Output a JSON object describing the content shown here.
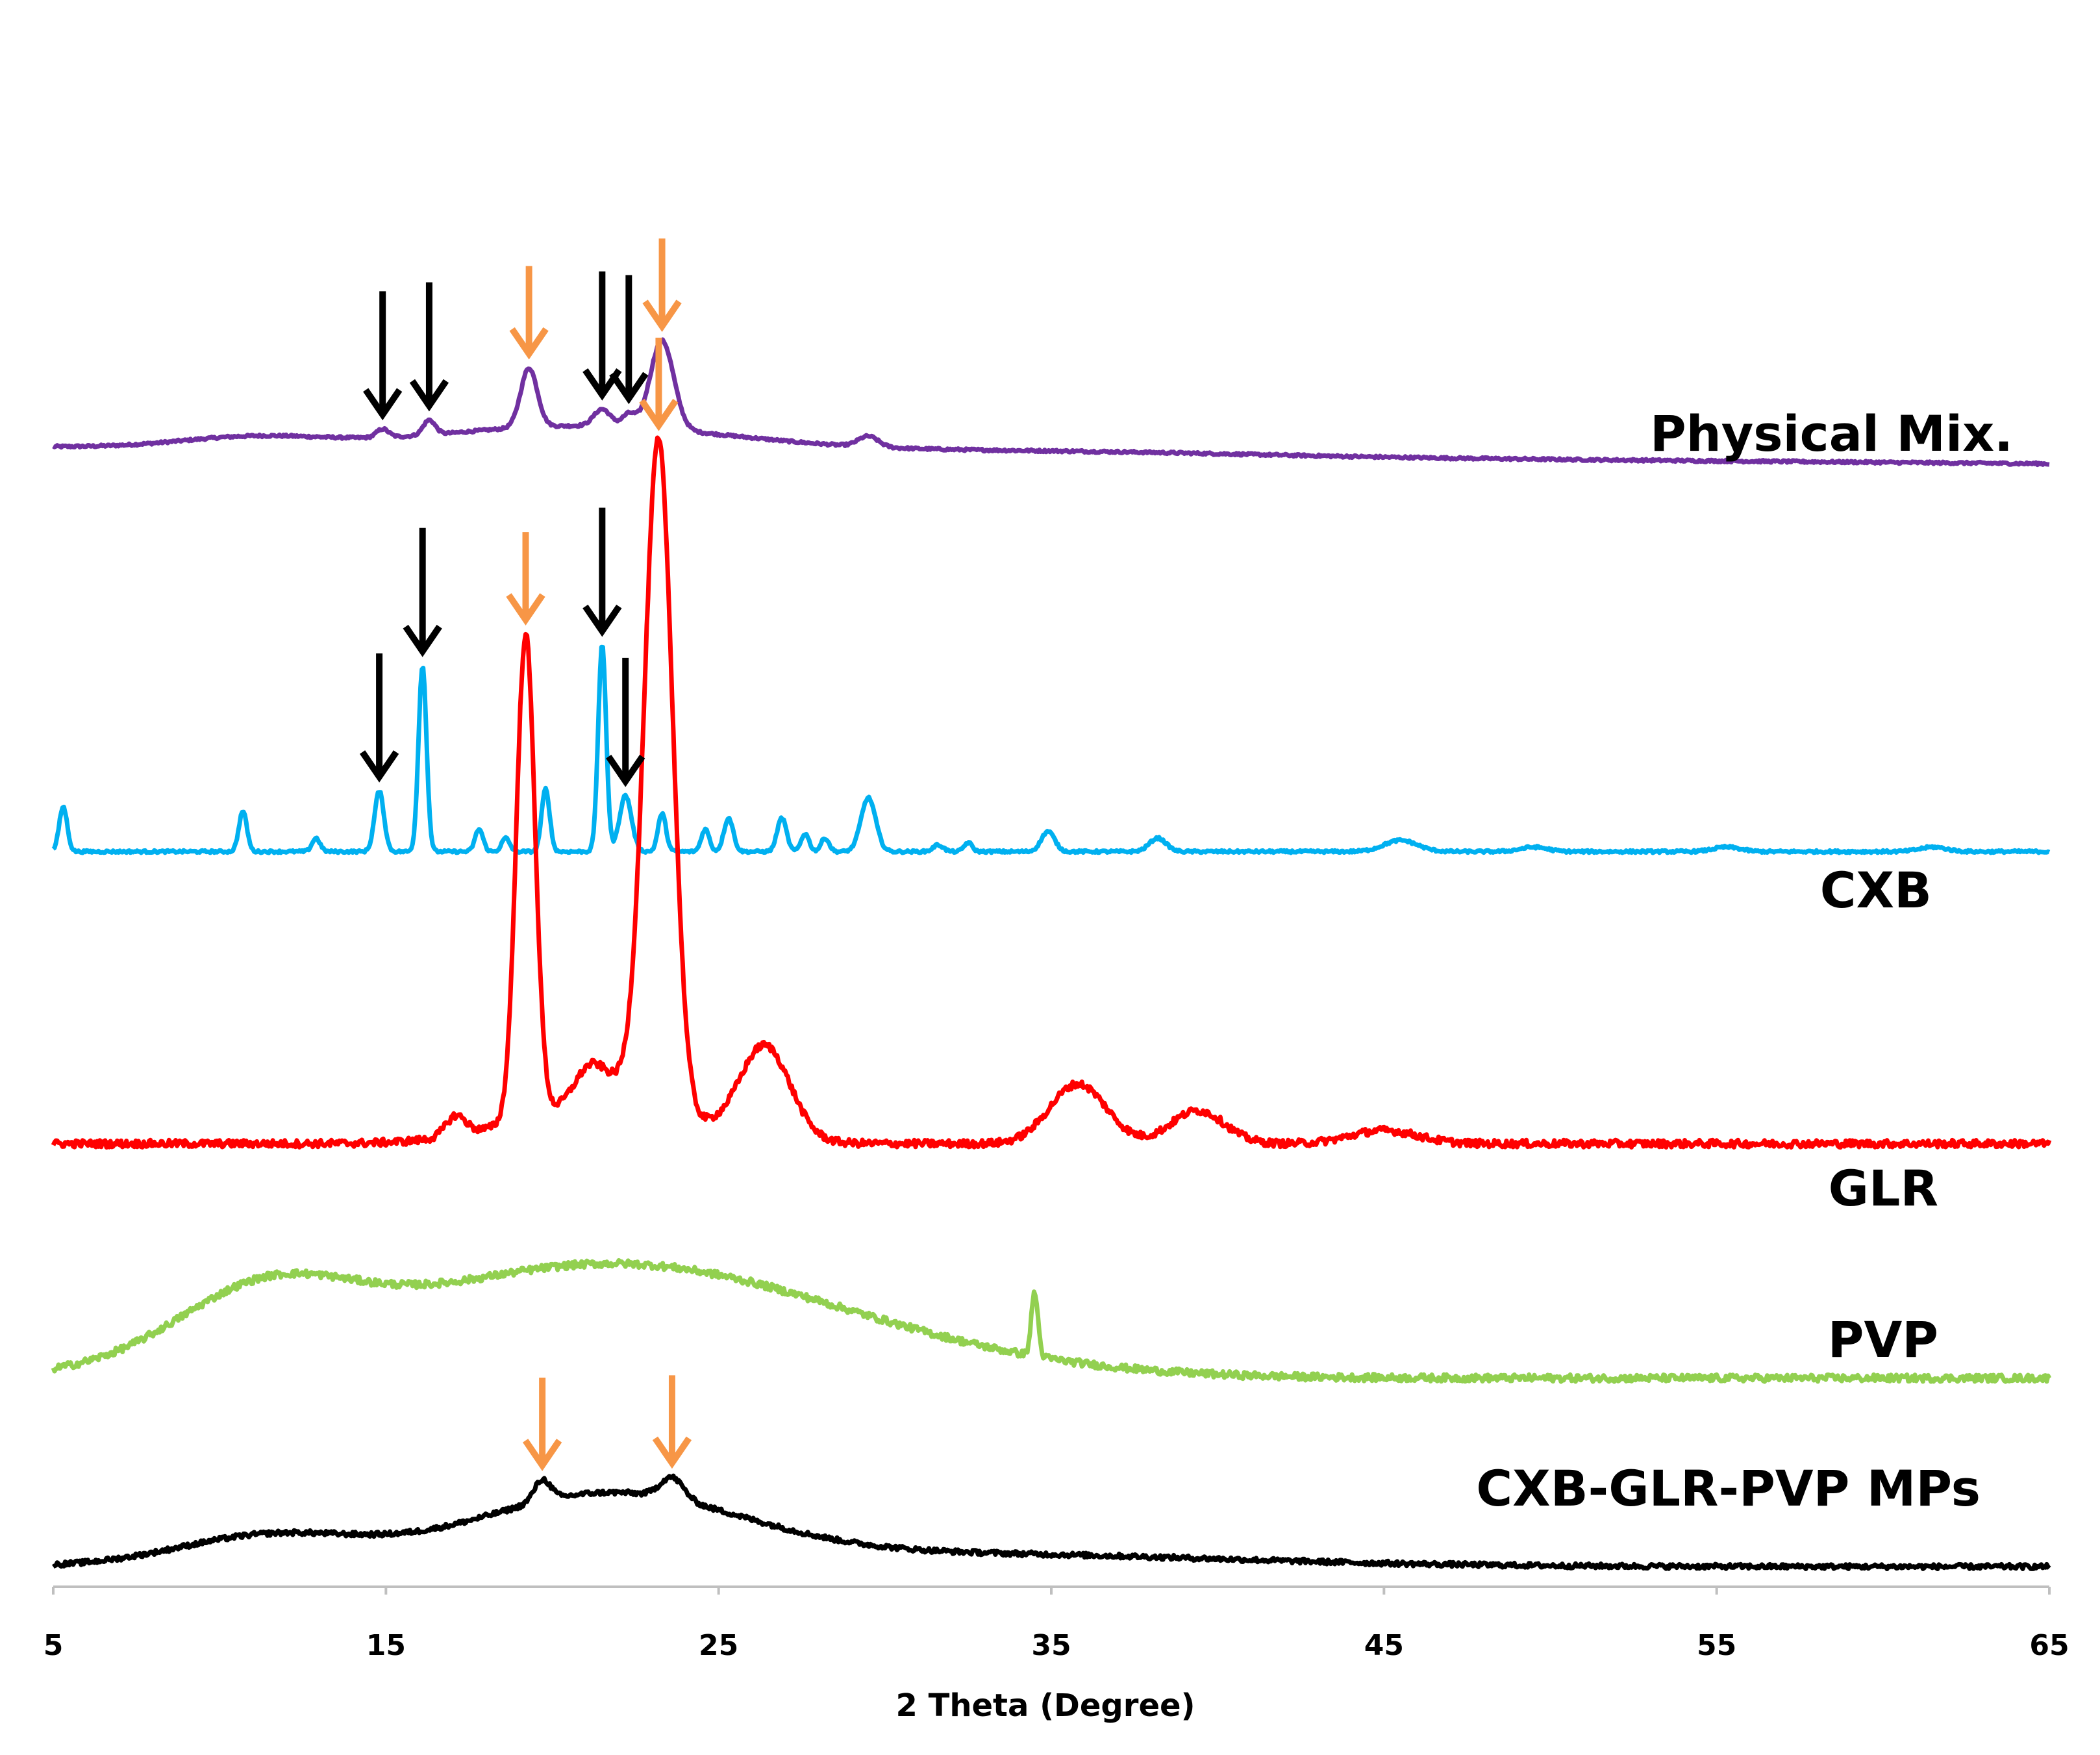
{
  "colors": {
    "physical_mix": "#7030a0",
    "cxb": "#00b0f0",
    "glr": "#ff0000",
    "pvp": "#92d050",
    "mps": "#000000",
    "orange_arrow": "#f79646",
    "black_arrow": "#000000",
    "axis": "#bfbfbf"
  },
  "chart_data": {
    "type": "line",
    "title": "",
    "xlabel": "2 Theta (Degree)",
    "ylabel": "",
    "xlim": [
      5,
      65
    ],
    "x_ticks": [
      5,
      15,
      25,
      35,
      45,
      55,
      65
    ],
    "x_tick_labels": [
      "5",
      "15",
      "25",
      "35",
      "45",
      "55",
      "65"
    ],
    "y_axis": "arbitrary intensity, traces vertically offset (stacked)",
    "series": [
      {
        "key": "physical_mix",
        "name": "Physical Mix.",
        "baseline_start": 10,
        "baseline_end": 2,
        "baseline_offset": 86,
        "humps": [
          {
            "center": 11,
            "height": 5,
            "width": 2.2
          },
          {
            "center": 21,
            "height": 12,
            "width": 4.5
          },
          {
            "center": 35,
            "height": 2,
            "width": 6
          }
        ],
        "peaks": [
          {
            "center": 14.9,
            "height": 4,
            "width": 0.18
          },
          {
            "center": 16.3,
            "height": 7,
            "width": 0.18
          },
          {
            "center": 19.3,
            "height": 28,
            "width": 0.25
          },
          {
            "center": 21.5,
            "height": 8,
            "width": 0.25
          },
          {
            "center": 22.3,
            "height": 6,
            "width": 0.2
          },
          {
            "center": 23.3,
            "height": 42,
            "width": 0.35
          },
          {
            "center": 29.5,
            "height": 5,
            "width": 0.3
          }
        ]
      },
      {
        "key": "cxb",
        "name": "CXB",
        "baseline_start": 4,
        "baseline_end": 4,
        "baseline_offset": 58,
        "humps": [],
        "peaks": [
          {
            "center": 5.3,
            "height": 20,
            "width": 0.12
          },
          {
            "center": 10.7,
            "height": 18,
            "width": 0.12
          },
          {
            "center": 12.9,
            "height": 6,
            "width": 0.12
          },
          {
            "center": 14.8,
            "height": 27,
            "width": 0.14
          },
          {
            "center": 16.1,
            "height": 83,
            "width": 0.12
          },
          {
            "center": 17.8,
            "height": 10,
            "width": 0.12
          },
          {
            "center": 18.6,
            "height": 6,
            "width": 0.12
          },
          {
            "center": 19.8,
            "height": 28,
            "width": 0.12
          },
          {
            "center": 21.5,
            "height": 92,
            "width": 0.12
          },
          {
            "center": 22.2,
            "height": 25,
            "width": 0.18
          },
          {
            "center": 23.3,
            "height": 17,
            "width": 0.12
          },
          {
            "center": 24.6,
            "height": 10,
            "width": 0.12
          },
          {
            "center": 25.3,
            "height": 15,
            "width": 0.14
          },
          {
            "center": 26.9,
            "height": 15,
            "width": 0.14
          },
          {
            "center": 27.6,
            "height": 8,
            "width": 0.12
          },
          {
            "center": 28.2,
            "height": 6,
            "width": 0.12
          },
          {
            "center": 29.5,
            "height": 24,
            "width": 0.22
          },
          {
            "center": 31.6,
            "height": 3,
            "width": 0.15
          },
          {
            "center": 32.5,
            "height": 4,
            "width": 0.12
          },
          {
            "center": 34.9,
            "height": 9,
            "width": 0.2
          },
          {
            "center": 38.2,
            "height": 6,
            "width": 0.25
          },
          {
            "center": 45.5,
            "height": 5,
            "width": 0.5
          },
          {
            "center": 49.5,
            "height": 2,
            "width": 0.4
          },
          {
            "center": 55.3,
            "height": 2,
            "width": 0.4
          },
          {
            "center": 61.5,
            "height": 2,
            "width": 0.4
          }
        ]
      },
      {
        "key": "glr",
        "name": "GLR",
        "baseline_start": 2,
        "baseline_end": 2,
        "baseline_offset": 19,
        "humps": [
          {
            "center": 21.5,
            "height": 6,
            "width": 2.5
          }
        ],
        "peaks": [
          {
            "center": 17.1,
            "height": 3,
            "width": 0.3
          },
          {
            "center": 19.2,
            "height": 73,
            "width": 0.28
          },
          {
            "center": 21.2,
            "height": 6,
            "width": 0.5
          },
          {
            "center": 22.5,
            "height": 4,
            "width": 0.5
          },
          {
            "center": 23.2,
            "height": 100,
            "width": 0.42
          },
          {
            "center": 26.4,
            "height": 14,
            "width": 0.75
          },
          {
            "center": 35.8,
            "height": 9,
            "width": 0.85
          },
          {
            "center": 39.4,
            "height": 5,
            "width": 0.8
          },
          {
            "center": 45,
            "height": 2,
            "width": 1
          }
        ]
      },
      {
        "key": "pvp",
        "name": "PVP",
        "baseline_start": 0,
        "baseline_end": 0,
        "baseline_offset": 9,
        "humps": [
          {
            "center": 11.3,
            "height": 10,
            "width": 2.6
          },
          {
            "center": 21.8,
            "height": 18,
            "width": 7
          }
        ],
        "peaks": [
          {
            "center": 34.5,
            "height": 10,
            "width": 0.1
          }
        ]
      },
      {
        "key": "mps",
        "name": "CXB-GLR-PVP MPs",
        "baseline_start": 0,
        "baseline_end": 0,
        "baseline_offset": 0,
        "humps": [
          {
            "center": 11.5,
            "height": 7,
            "width": 2.8
          },
          {
            "center": 21.6,
            "height": 16,
            "width": 4
          },
          {
            "center": 32,
            "height": 3,
            "width": 8
          }
        ],
        "peaks": [
          {
            "center": 19.7,
            "height": 5,
            "width": 0.25
          },
          {
            "center": 23.6,
            "height": 5,
            "width": 0.35
          }
        ]
      }
    ],
    "annotations": [
      {
        "type": "arrow",
        "color": "orange",
        "series": "physical_mix",
        "x": 19.3
      },
      {
        "type": "arrow",
        "color": "orange",
        "series": "physical_mix",
        "x": 23.3
      },
      {
        "type": "arrow",
        "color": "black",
        "series": "physical_mix",
        "x": 14.9
      },
      {
        "type": "arrow",
        "color": "black",
        "series": "physical_mix",
        "x": 16.3
      },
      {
        "type": "arrow",
        "color": "black",
        "series": "physical_mix",
        "x": 21.5
      },
      {
        "type": "arrow",
        "color": "black",
        "series": "physical_mix",
        "x": 22.3
      },
      {
        "type": "arrow",
        "color": "black",
        "series": "cxb",
        "x": 14.8
      },
      {
        "type": "arrow",
        "color": "black",
        "series": "cxb",
        "x": 16.1
      },
      {
        "type": "arrow",
        "color": "black",
        "series": "cxb",
        "x": 21.5
      },
      {
        "type": "arrow",
        "color": "black",
        "series": "cxb",
        "x": 22.2
      },
      {
        "type": "arrow",
        "color": "orange",
        "series": "glr",
        "x": 19.2
      },
      {
        "type": "arrow",
        "color": "orange",
        "series": "glr",
        "x": 23.2
      },
      {
        "type": "arrow",
        "color": "orange",
        "series": "mps",
        "x": 19.7
      },
      {
        "type": "arrow",
        "color": "orange",
        "series": "mps",
        "x": 23.6
      }
    ]
  }
}
